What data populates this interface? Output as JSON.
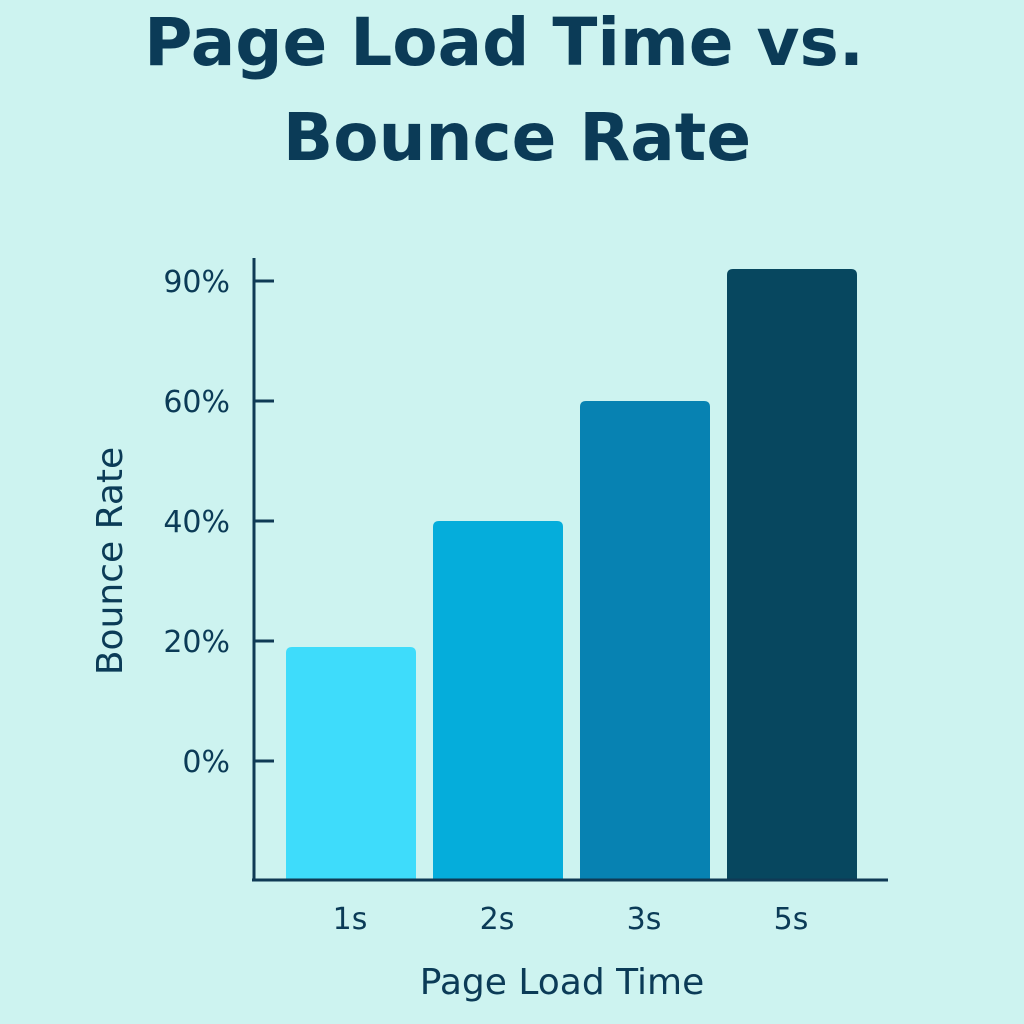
{
  "chart_data": {
    "type": "bar",
    "title_lines": [
      "Page Load Time vs.",
      "Bounce Rate"
    ],
    "xlabel": "Page Load Time",
    "ylabel": "Bounce Rate",
    "categories": [
      "1s",
      "2s",
      "3s",
      "5s"
    ],
    "values": [
      19,
      40,
      60,
      93
    ],
    "yticks": [
      {
        "value": 0,
        "label": "0%"
      },
      {
        "value": 20,
        "label": "20%"
      },
      {
        "value": 40,
        "label": "40%"
      },
      {
        "value": 60,
        "label": "60%"
      },
      {
        "value": 90,
        "label": "90%"
      }
    ],
    "bar_colors": [
      "#3EDCFB",
      "#05ADDB",
      "#0782B2",
      "#07475F"
    ],
    "text_color": "#0B3B57",
    "axis_color": "#0F3A55",
    "background_color": "#CDF3F0",
    "grid": false
  }
}
